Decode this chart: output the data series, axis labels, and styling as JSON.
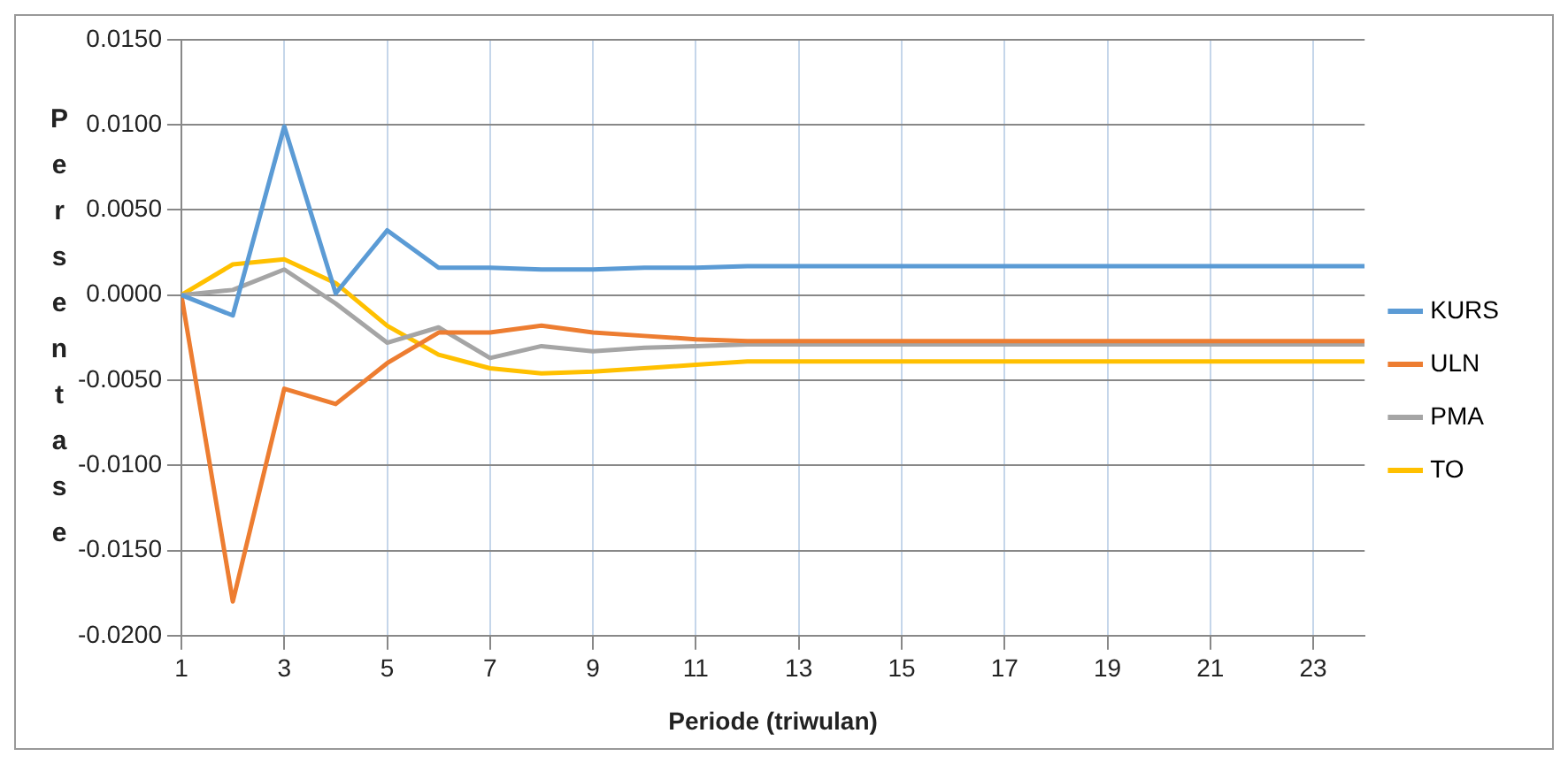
{
  "chart_data": {
    "type": "line",
    "xlabel": "Periode (triwulan)",
    "ylabel": "Persentase",
    "x": [
      1,
      2,
      3,
      4,
      5,
      6,
      7,
      8,
      9,
      10,
      11,
      12,
      13,
      14,
      15,
      16,
      17,
      18,
      19,
      20,
      21,
      22,
      23,
      24
    ],
    "xlim": [
      1,
      24
    ],
    "xticks": [
      1,
      3,
      5,
      7,
      9,
      11,
      13,
      15,
      17,
      19,
      21,
      23
    ],
    "series": [
      {
        "name": "KURS",
        "color": "#5b9bd5",
        "values": [
          0,
          -0.0012,
          0.0099,
          0.0001,
          0.0038,
          0.0016,
          0.0016,
          0.0015,
          0.0015,
          0.0016,
          0.0016,
          0.0017,
          0.0017,
          0.0017,
          0.0017,
          0.0017,
          0.0017,
          0.0017,
          0.0017,
          0.0017,
          0.0017,
          0.0017,
          0.0017,
          0.0017
        ]
      },
      {
        "name": "ULN",
        "color": "#ed7d31",
        "values": [
          0,
          -0.018,
          -0.0055,
          -0.0064,
          -0.004,
          -0.0022,
          -0.0022,
          -0.0018,
          -0.0022,
          -0.0024,
          -0.0026,
          -0.0027,
          -0.0027,
          -0.0027,
          -0.0027,
          -0.0027,
          -0.0027,
          -0.0027,
          -0.0027,
          -0.0027,
          -0.0027,
          -0.0027,
          -0.0027,
          -0.0027
        ]
      },
      {
        "name": "PMA",
        "color": "#a5a5a5",
        "values": [
          0,
          0.0003,
          0.0015,
          -0.0005,
          -0.0028,
          -0.0019,
          -0.0037,
          -0.003,
          -0.0033,
          -0.0031,
          -0.003,
          -0.0029,
          -0.0029,
          -0.0029,
          -0.0029,
          -0.0029,
          -0.0029,
          -0.0029,
          -0.0029,
          -0.0029,
          -0.0029,
          -0.0029,
          -0.0029,
          -0.0029
        ]
      },
      {
        "name": "TO",
        "color": "#ffc000",
        "values": [
          0,
          0.0018,
          0.0021,
          0.0007,
          -0.0018,
          -0.0035,
          -0.0043,
          -0.0046,
          -0.0045,
          -0.0043,
          -0.0041,
          -0.0039,
          -0.0039,
          -0.0039,
          -0.0039,
          -0.0039,
          -0.0039,
          -0.0039,
          -0.0039,
          -0.0039,
          -0.0039,
          -0.0039,
          -0.0039,
          -0.0039
        ]
      }
    ],
    "ylim": [
      -0.02,
      0.015
    ],
    "yticks": [
      {
        "value": -0.02,
        "label": "-0.0200"
      },
      {
        "value": -0.015,
        "label": "-0.0150"
      },
      {
        "value": -0.01,
        "label": "-0.0100"
      },
      {
        "value": -0.005,
        "label": "-0.0050"
      },
      {
        "value": 0,
        "label": "0.0000"
      },
      {
        "value": 0.005,
        "label": "0.0050"
      },
      {
        "value": 0.01,
        "label": "0.0100"
      },
      {
        "value": 0.015,
        "label": "0.0150"
      }
    ],
    "grid": true,
    "legend": "right",
    "marker": "none",
    "line_style": "solid"
  }
}
